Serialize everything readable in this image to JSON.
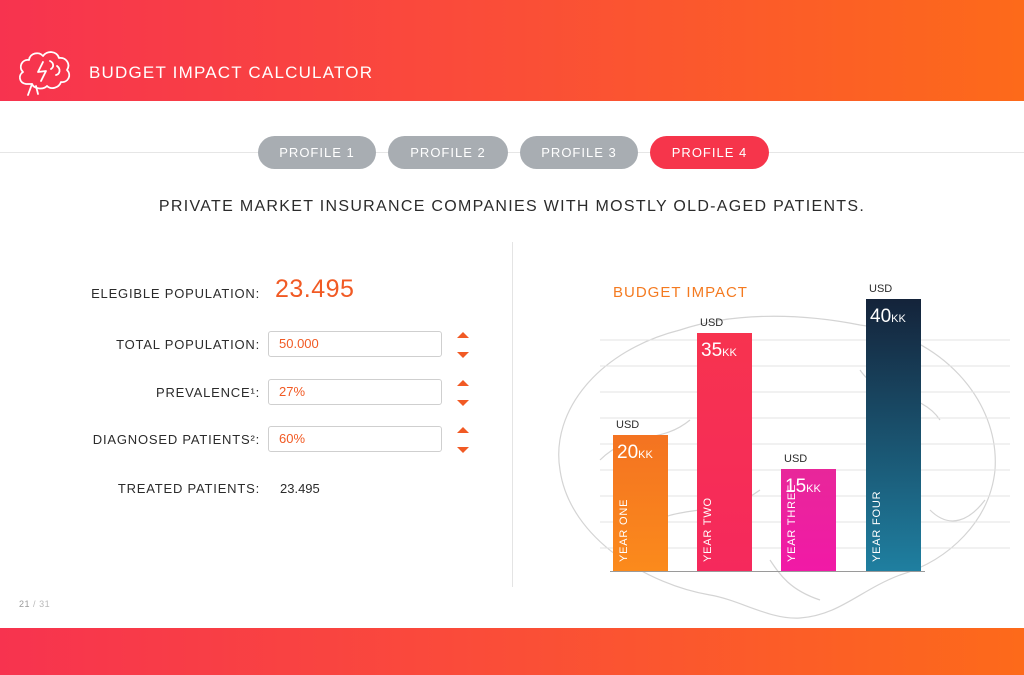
{
  "header": {
    "title": "BUDGET IMPACT CALCULATOR",
    "logo_icon": "brain-icon"
  },
  "tabs": [
    {
      "label": "PROFILE 1",
      "active": false
    },
    {
      "label": "PROFILE 2",
      "active": false
    },
    {
      "label": "PROFILE 3",
      "active": false
    },
    {
      "label": "PROFILE 4",
      "active": true
    }
  ],
  "subtitle": "PRIVATE MARKET INSURANCE COMPANIES WITH MOSTLY OLD-AGED PATIENTS.",
  "calculator": {
    "eligible_label": "ELEGIBLE POPULATION:",
    "eligible_value": "23.495",
    "total_label": "TOTAL POPULATION:",
    "total_value": "50.000",
    "prevalence_label": "PREVALENCE¹:",
    "prevalence_value": "27%",
    "diagnosed_label": "DIAGNOSED PATIENTS²:",
    "diagnosed_value": "60%",
    "treated_label": "TREATED PATIENTS:",
    "treated_value": "23.495"
  },
  "pager": {
    "current": "21",
    "separator": "/",
    "total": "31"
  },
  "colors": {
    "accent": "#f15a24",
    "tab_active": "#f6354b",
    "tab_inactive": "#a8adb2",
    "header_start": "#f7334f",
    "header_end": "#fd6a1a"
  },
  "chart_data": {
    "type": "bar",
    "title": "BUDGET IMPACT",
    "categories": [
      "YEAR ONE",
      "YEAR TWO",
      "YEAR THREE",
      "YEAR FOUR"
    ],
    "values": [
      20,
      35,
      15,
      40
    ],
    "unit_prefix": "USD",
    "value_suffix": "KK",
    "bar_gradients": [
      [
        "#f47321",
        "#fb8a1c"
      ],
      [
        "#f7334f",
        "#f5295c"
      ],
      [
        "#e8279a",
        "#f119a6"
      ],
      [
        "#14233a",
        "#1f7fa0"
      ]
    ],
    "grid": true
  }
}
